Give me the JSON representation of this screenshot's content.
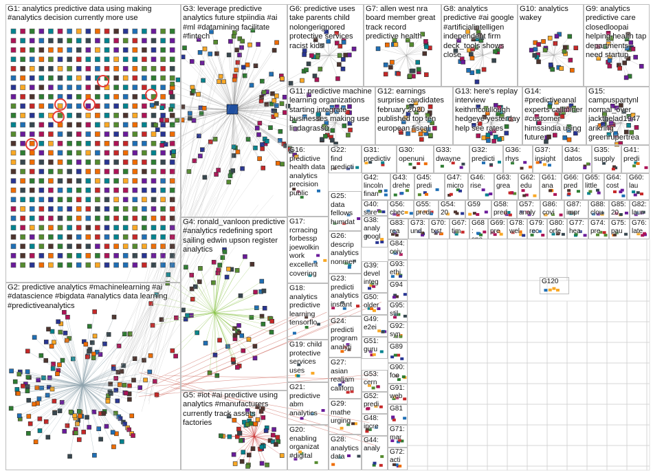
{
  "groups": [
    {
      "id": "G1",
      "text": "G1: analytics predictive data using making #analytics decision currently more use"
    },
    {
      "id": "G2",
      "text": "G2: predictive analytics #machinelearning #ai #datascience #bigdata #analytics data learning #predictiveanalytics"
    },
    {
      "id": "G3",
      "text": "G3: leverage predictive analytics future stpiindia #ai #ml #datamining facilitate #fintech"
    },
    {
      "id": "G4",
      "text": "G4: ronald_vanloon predictive #analytics redefining sport sailing edwin upson register analytics"
    },
    {
      "id": "G5",
      "text": "G5: #iot #ai predictive using analytics #manufacturers currently track assets factories"
    },
    {
      "id": "G6",
      "text": "G6: predictive uses take parents child nolongerignored protective services racist kids"
    },
    {
      "id": "G7",
      "text": "G7: allen west nra board member great track record predictive health"
    },
    {
      "id": "G8",
      "text": "G8: analytics predictive #ai google #artificialintelligen independent firm deck_tools shows close"
    },
    {
      "id": "G10",
      "text": "G10: analytics wakey"
    },
    {
      "id": "G9",
      "text": "G9: analytics predictive care closedloopai helping health tap departments need startup"
    },
    {
      "id": "G11",
      "text": "G11: predictive machine learning organizations starting integrate businesses making use lindagrass0"
    },
    {
      "id": "G12",
      "text": "G12: earnings surprise candidates february 2020 published top ten european fiscal"
    },
    {
      "id": "G13",
      "text": "G13: here's replay interview keithmccullough hedgeye yesterday help see rates"
    },
    {
      "id": "G14",
      "text": "G14: #predictiveanal experts callminer #customer himssindia using future"
    },
    {
      "id": "G15",
      "text": "G15: campuspartynl normal_over jackthelad1947 arikring greenrupertrea"
    },
    {
      "id": "G16",
      "text": "G16: predictive health data analytics precision public"
    },
    {
      "id": "G22",
      "text": "G22: find predicti analyti"
    },
    {
      "id": "G31",
      "text": "G31: predictiv"
    },
    {
      "id": "G30",
      "text": "G30: openuni"
    },
    {
      "id": "G33",
      "text": "G33: dwayne"
    },
    {
      "id": "G32",
      "text": "G32: predicti"
    },
    {
      "id": "G36",
      "text": "G36: rhys"
    },
    {
      "id": "G37",
      "text": "G37: insight"
    },
    {
      "id": "G34",
      "text": "G34: datos"
    },
    {
      "id": "G35",
      "text": "G35: supply"
    },
    {
      "id": "G41",
      "text": "G41: predi"
    },
    {
      "id": "G42",
      "text": "G42: lincoln finan"
    },
    {
      "id": "G43",
      "text": "G43: drehe"
    },
    {
      "id": "G45",
      "text": "G45: predi"
    },
    {
      "id": "G47",
      "text": "G47: micro"
    },
    {
      "id": "G46",
      "text": "G46: rise"
    },
    {
      "id": "G63",
      "text": "G63: grea"
    },
    {
      "id": "G62",
      "text": "G62: edu"
    },
    {
      "id": "G61",
      "text": "G61: ana"
    },
    {
      "id": "G66",
      "text": "G66: pred"
    },
    {
      "id": "G65",
      "text": "G65: little"
    },
    {
      "id": "G64",
      "text": "G64: cost"
    },
    {
      "id": "G60",
      "text": "G60: lau"
    },
    {
      "id": "G25",
      "text": "G25: data fellows humdat"
    },
    {
      "id": "G40",
      "text": "G40: sure"
    },
    {
      "id": "G56",
      "text": "G56: chec"
    },
    {
      "id": "G55",
      "text": "G55: predi"
    },
    {
      "id": "G54",
      "text": "G54: 20"
    },
    {
      "id": "G59",
      "text": "G59"
    },
    {
      "id": "G58",
      "text": "G58: pred"
    },
    {
      "id": "G57",
      "text": "G57: analy"
    },
    {
      "id": "G86",
      "text": "G86: covi"
    },
    {
      "id": "G87",
      "text": "G87: impr"
    },
    {
      "id": "G88",
      "text": "G88: clou"
    },
    {
      "id": "G85",
      "text": "G85: 20"
    },
    {
      "id": "G82",
      "text": "G82: laur"
    },
    {
      "id": "G17",
      "text": "G17: rcrracing forbessp joewolkin work excellent covering"
    },
    {
      "id": "G26",
      "text": "G26: descrip analytics nonmer"
    },
    {
      "id": "G38",
      "text": "G38: analy googl"
    },
    {
      "id": "G83",
      "text": "G83: rea"
    },
    {
      "id": "G73",
      "text": "G73: und"
    },
    {
      "id": "G70",
      "text": "G70: txst"
    },
    {
      "id": "G67",
      "text": "G67: tim"
    },
    {
      "id": "G68",
      "text": "G68: spo"
    },
    {
      "id": "G69",
      "text": "G69: pre"
    },
    {
      "id": "G78",
      "text": "G78: wel"
    },
    {
      "id": "G79",
      "text": "G79: rec"
    },
    {
      "id": "G80",
      "text": "G80: orfe"
    },
    {
      "id": "G77",
      "text": "G77: hea"
    },
    {
      "id": "G74",
      "text": "G74: pre"
    },
    {
      "id": "G75",
      "text": "G75: pau"
    },
    {
      "id": "G76",
      "text": "G76: late"
    },
    {
      "id": "G84",
      "text": "G84: coiv"
    },
    {
      "id": "G39",
      "text": "G39: devel integ"
    },
    {
      "id": "G93",
      "text": "G93: ethi"
    },
    {
      "id": "G18",
      "text": "G18: analytics predictive learning tensorflo"
    },
    {
      "id": "G23",
      "text": "G23: predicti analytics instant"
    },
    {
      "id": "G50",
      "text": "G50: older"
    },
    {
      "id": "G94",
      "text": "G94"
    },
    {
      "id": "G95",
      "text": "G95: stil"
    },
    {
      "id": "G24",
      "text": "G24: predicti program analyti"
    },
    {
      "id": "G49",
      "text": "G49: e2ei"
    },
    {
      "id": "G92",
      "text": "G92: syn"
    },
    {
      "id": "G19",
      "text": "G19: child protective services uses"
    },
    {
      "id": "G51",
      "text": "G51: guru"
    },
    {
      "id": "G89",
      "text": "G89"
    },
    {
      "id": "G27",
      "text": "G27: asian realjam californ"
    },
    {
      "id": "G53",
      "text": "G53: cern"
    },
    {
      "id": "G90",
      "text": "G90: foo"
    },
    {
      "id": "G21",
      "text": "G21: predictive abm analytics"
    },
    {
      "id": "G52",
      "text": "G52: predi"
    },
    {
      "id": "G91",
      "text": "G91: web"
    },
    {
      "id": "G29",
      "text": "G29: mathe urging"
    },
    {
      "id": "G48",
      "text": "G48: incre"
    },
    {
      "id": "G81",
      "text": "G81"
    },
    {
      "id": "G20",
      "text": "G20: enabling organizat #digital"
    },
    {
      "id": "G28",
      "text": "G28: analytics data"
    },
    {
      "id": "G44",
      "text": "G44: analy"
    },
    {
      "id": "G71",
      "text": "G71: mar"
    },
    {
      "id": "G72",
      "text": "G72: acti"
    },
    {
      "id": "G120",
      "text": "G120"
    }
  ],
  "palette": {
    "edge_gray": "#b0b0b0",
    "edge_red": "#c0392b",
    "box_border": "#bdbdbd",
    "node_colors": [
      "#1f6fb5",
      "#2e7d32",
      "#6a1b9a",
      "#c62828",
      "#ef6c00",
      "#00838f",
      "#ad1457",
      "#283593",
      "#558b2f",
      "#4e342e",
      "#f9a825",
      "#37474f"
    ]
  }
}
